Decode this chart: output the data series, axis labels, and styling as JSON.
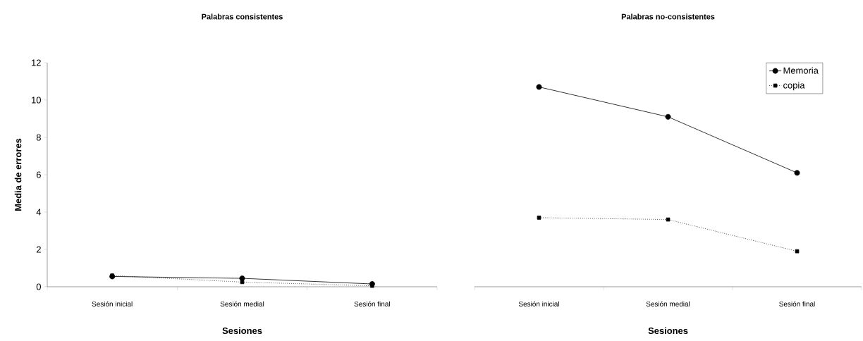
{
  "chart_data": [
    {
      "type": "line",
      "title": "Palabras consistentes",
      "xlabel": "Sesiones",
      "ylabel": "Media de errores",
      "categories": [
        "Sesión inicial",
        "Sesión medial",
        "Sesión final"
      ],
      "series": [
        {
          "color": "#000000",
          "marker": "circle",
          "line_style": "solid",
          "values": [
            0.55,
            0.45,
            0.15
          ]
        },
        {
          "color": "#000000",
          "marker": "square",
          "line_style": "dotted",
          "values": [
            0.6,
            0.25,
            0.05
          ]
        }
      ],
      "ylim": [
        0,
        12
      ],
      "yticks": [
        0,
        2,
        4,
        6,
        8,
        10,
        12
      ]
    },
    {
      "type": "line",
      "title": "Palabras no-consistentes",
      "xlabel": "Sesiones",
      "categories": [
        "Sesión inicial",
        "Sesión medial",
        "Sesión final"
      ],
      "series": [
        {
          "name": "Memoria",
          "color": "#000000",
          "marker": "circle",
          "line_style": "solid",
          "values": [
            10.7,
            9.1,
            6.1
          ]
        },
        {
          "name": "copia",
          "color": "#000000",
          "marker": "square",
          "line_style": "dotted",
          "values": [
            3.7,
            3.6,
            1.9
          ]
        }
      ],
      "ylim": [
        0,
        12
      ],
      "tick_labels": "x",
      "legend": "top right"
    }
  ]
}
